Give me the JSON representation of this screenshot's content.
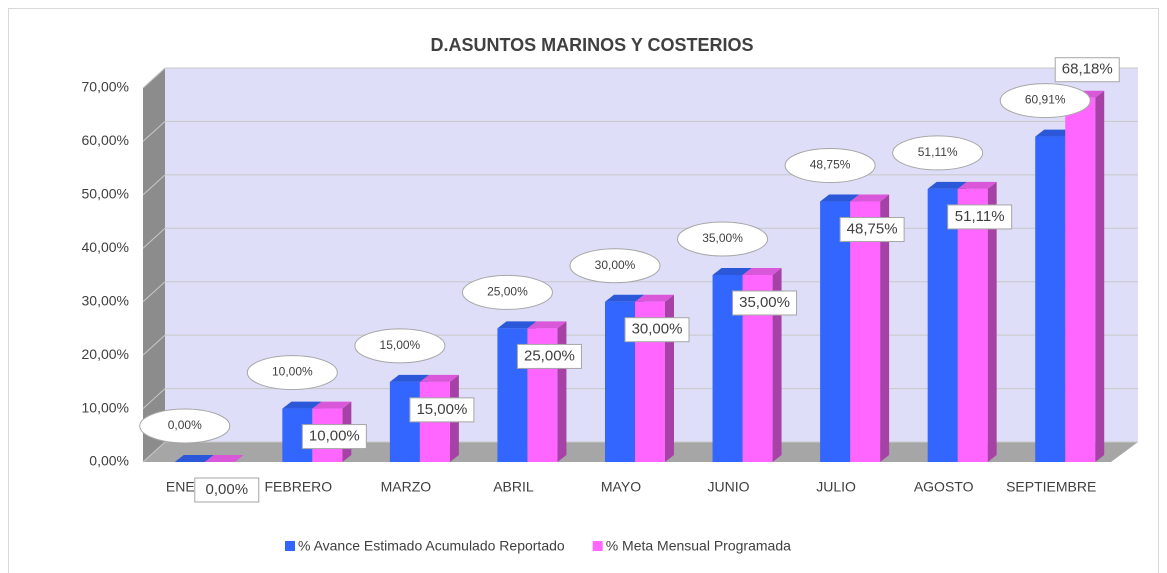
{
  "chart_data": {
    "type": "bar3d",
    "title": "D.ASUNTOS MARINOS Y COSTERIOS",
    "categories": [
      "ENERO",
      "FEBRERO",
      "MARZO",
      "ABRIL",
      "MAYO",
      "JUNIO",
      "JULIO",
      "AGOSTO",
      "SEPTIEMBRE"
    ],
    "series": [
      {
        "name": "% Avance Estimado Acumulado Reportado",
        "color": "#3366ff",
        "values": [
          0,
          10,
          15,
          25,
          30,
          35,
          48.75,
          51.11,
          60.91
        ],
        "value_labels": [
          "0,00%",
          "10,00%",
          "15,00%",
          "25,00%",
          "30,00%",
          "35,00%",
          "48,75%",
          "51,11%",
          "60,91%"
        ]
      },
      {
        "name": "% Meta Mensual Programada",
        "color": "#ff66ff",
        "values": [
          0,
          10,
          15,
          25,
          30,
          35,
          48.75,
          51.11,
          68.18
        ],
        "value_labels": [
          "0,00%",
          "10,00%",
          "15,00%",
          "25,00%",
          "30,00%",
          "35,00%",
          "48,75%",
          "51,11%",
          "68,18%"
        ]
      }
    ],
    "ylim": [
      0,
      70
    ],
    "yticks": [
      {
        "value": 0,
        "label": "0,00%"
      },
      {
        "value": 10,
        "label": "10,00%"
      },
      {
        "value": 20,
        "label": "20,00%"
      },
      {
        "value": 30,
        "label": "30,00%"
      },
      {
        "value": 40,
        "label": "40,00%"
      },
      {
        "value": 50,
        "label": "50,00%"
      },
      {
        "value": 60,
        "label": "60,00%"
      },
      {
        "value": 70,
        "label": "70,00%"
      }
    ],
    "grid": true,
    "legend": "bottom"
  }
}
